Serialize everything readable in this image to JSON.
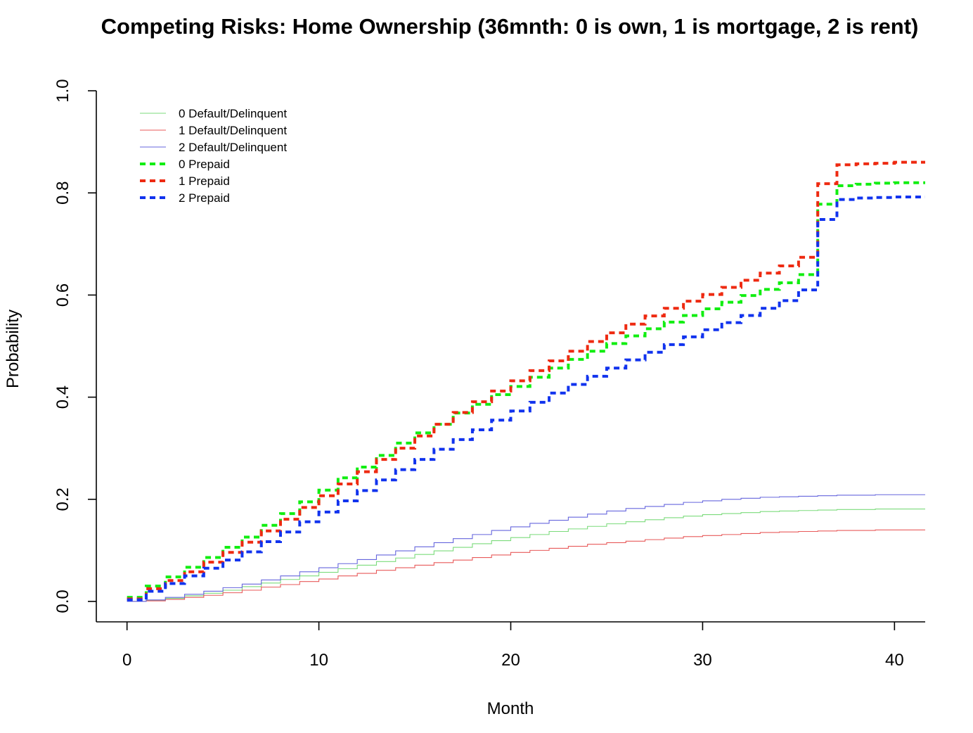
{
  "chart_data": {
    "type": "line",
    "step": true,
    "title": "Competing Risks: Home Ownership (36mnth: 0 is own, 1 is mortgage, 2 is rent)",
    "xlabel": "Month",
    "ylabel": "Probability",
    "xlim": [
      -1.6,
      41.6
    ],
    "ylim": [
      -0.04,
      1.04
    ],
    "x_ticks": [
      0,
      10,
      20,
      30,
      40
    ],
    "y_ticks": [
      0.0,
      0.2,
      0.4,
      0.6,
      0.8,
      1.0
    ],
    "x_tick_labels": [
      "0",
      "10",
      "20",
      "30",
      "40"
    ],
    "y_tick_labels": [
      "0.0",
      "0.2",
      "0.4",
      "0.6",
      "0.8",
      "1.0"
    ],
    "grid": false,
    "legend_position": "top-left",
    "x_end": 41.6,
    "series": [
      {
        "name": "0 Default/Delinquent",
        "color": "#7bdb7b",
        "style": "solid",
        "x": [
          0,
          1,
          2,
          3,
          4,
          5,
          6,
          7,
          8,
          9,
          10,
          11,
          12,
          13,
          14,
          15,
          16,
          17,
          18,
          19,
          20,
          21,
          22,
          23,
          24,
          25,
          26,
          27,
          28,
          29,
          30,
          31,
          32,
          33,
          34,
          35,
          36,
          37,
          38,
          39,
          40,
          41
        ],
        "y": [
          0.0,
          0.002,
          0.006,
          0.011,
          0.016,
          0.022,
          0.029,
          0.036,
          0.043,
          0.05,
          0.057,
          0.064,
          0.071,
          0.078,
          0.085,
          0.092,
          0.099,
          0.106,
          0.113,
          0.119,
          0.125,
          0.131,
          0.137,
          0.142,
          0.147,
          0.152,
          0.156,
          0.16,
          0.164,
          0.167,
          0.17,
          0.172,
          0.174,
          0.176,
          0.177,
          0.178,
          0.179,
          0.18,
          0.18,
          0.181,
          0.181,
          0.181
        ]
      },
      {
        "name": "1 Default/Delinquent",
        "color": "#e85a5a",
        "style": "solid",
        "x": [
          0,
          1,
          2,
          3,
          4,
          5,
          6,
          7,
          8,
          9,
          10,
          11,
          12,
          13,
          14,
          15,
          16,
          17,
          18,
          19,
          20,
          21,
          22,
          23,
          24,
          25,
          26,
          27,
          28,
          29,
          30,
          31,
          32,
          33,
          34,
          35,
          36,
          37,
          38,
          39,
          40,
          41
        ],
        "y": [
          0.0,
          0.001,
          0.004,
          0.008,
          0.012,
          0.017,
          0.022,
          0.028,
          0.033,
          0.039,
          0.044,
          0.05,
          0.055,
          0.061,
          0.066,
          0.071,
          0.076,
          0.081,
          0.086,
          0.091,
          0.096,
          0.1,
          0.104,
          0.108,
          0.112,
          0.115,
          0.118,
          0.121,
          0.124,
          0.127,
          0.129,
          0.131,
          0.133,
          0.135,
          0.136,
          0.137,
          0.138,
          0.139,
          0.139,
          0.14,
          0.14,
          0.14
        ]
      },
      {
        "name": "2 Default/Delinquent",
        "color": "#6666dd",
        "style": "solid",
        "x": [
          0,
          1,
          2,
          3,
          4,
          5,
          6,
          7,
          8,
          9,
          10,
          11,
          12,
          13,
          14,
          15,
          16,
          17,
          18,
          19,
          20,
          21,
          22,
          23,
          24,
          25,
          26,
          27,
          28,
          29,
          30,
          31,
          32,
          33,
          34,
          35,
          36,
          37,
          38,
          39,
          40,
          41
        ],
        "y": [
          0.0,
          0.003,
          0.008,
          0.014,
          0.02,
          0.027,
          0.034,
          0.042,
          0.05,
          0.058,
          0.066,
          0.074,
          0.082,
          0.091,
          0.099,
          0.107,
          0.115,
          0.123,
          0.131,
          0.139,
          0.146,
          0.153,
          0.159,
          0.165,
          0.171,
          0.177,
          0.182,
          0.186,
          0.19,
          0.194,
          0.197,
          0.2,
          0.202,
          0.204,
          0.205,
          0.206,
          0.207,
          0.208,
          0.208,
          0.209,
          0.209,
          0.209
        ]
      },
      {
        "name": "0 Prepaid",
        "color": "#11ee11",
        "style": "dashed",
        "x": [
          0,
          1,
          2,
          3,
          4,
          5,
          6,
          7,
          8,
          9,
          10,
          11,
          12,
          13,
          14,
          15,
          16,
          17,
          18,
          19,
          20,
          21,
          22,
          23,
          24,
          25,
          26,
          27,
          28,
          29,
          30,
          31,
          32,
          33,
          34,
          35,
          36,
          37,
          38,
          39,
          40,
          41
        ],
        "y": [
          0.008,
          0.03,
          0.048,
          0.067,
          0.086,
          0.106,
          0.126,
          0.149,
          0.172,
          0.195,
          0.218,
          0.242,
          0.263,
          0.286,
          0.31,
          0.33,
          0.347,
          0.369,
          0.386,
          0.405,
          0.421,
          0.439,
          0.457,
          0.474,
          0.49,
          0.505,
          0.52,
          0.534,
          0.547,
          0.56,
          0.573,
          0.586,
          0.599,
          0.611,
          0.624,
          0.64,
          0.778,
          0.814,
          0.817,
          0.819,
          0.82,
          0.82
        ]
      },
      {
        "name": "1 Prepaid",
        "color": "#ee2a11",
        "style": "dashed",
        "x": [
          0,
          1,
          2,
          3,
          4,
          5,
          6,
          7,
          8,
          9,
          10,
          11,
          12,
          13,
          14,
          15,
          16,
          17,
          18,
          19,
          20,
          21,
          22,
          23,
          24,
          25,
          26,
          27,
          28,
          29,
          30,
          31,
          32,
          33,
          34,
          35,
          36,
          37,
          38,
          39,
          40,
          41
        ],
        "y": [
          0.005,
          0.025,
          0.041,
          0.058,
          0.077,
          0.096,
          0.116,
          0.138,
          0.161,
          0.184,
          0.207,
          0.23,
          0.254,
          0.278,
          0.3,
          0.324,
          0.347,
          0.37,
          0.391,
          0.412,
          0.432,
          0.452,
          0.471,
          0.49,
          0.509,
          0.526,
          0.543,
          0.559,
          0.574,
          0.588,
          0.601,
          0.615,
          0.629,
          0.643,
          0.657,
          0.674,
          0.818,
          0.855,
          0.857,
          0.858,
          0.86,
          0.86
        ]
      },
      {
        "name": "2 Prepaid",
        "color": "#1133ee",
        "style": "dashed",
        "x": [
          0,
          1,
          2,
          3,
          4,
          5,
          6,
          7,
          8,
          9,
          10,
          11,
          12,
          13,
          14,
          15,
          16,
          17,
          18,
          19,
          20,
          21,
          22,
          23,
          24,
          25,
          26,
          27,
          28,
          29,
          30,
          31,
          32,
          33,
          34,
          35,
          36,
          37,
          38,
          39,
          40,
          41
        ],
        "y": [
          0.003,
          0.02,
          0.035,
          0.05,
          0.065,
          0.081,
          0.097,
          0.117,
          0.136,
          0.156,
          0.175,
          0.197,
          0.217,
          0.238,
          0.258,
          0.278,
          0.298,
          0.317,
          0.336,
          0.355,
          0.373,
          0.39,
          0.408,
          0.425,
          0.441,
          0.457,
          0.473,
          0.488,
          0.503,
          0.518,
          0.532,
          0.546,
          0.56,
          0.574,
          0.589,
          0.61,
          0.748,
          0.787,
          0.79,
          0.791,
          0.792,
          0.792
        ]
      }
    ]
  }
}
